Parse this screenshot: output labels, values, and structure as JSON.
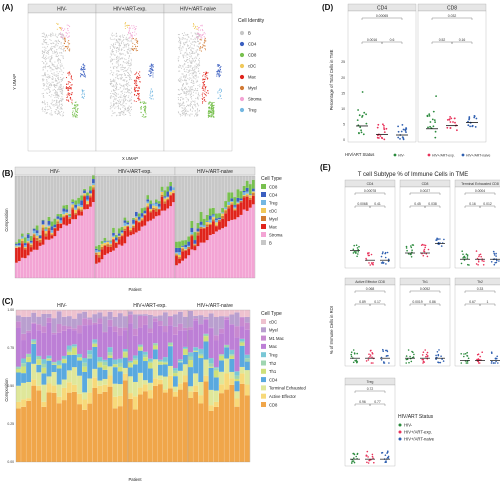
{
  "palette": {
    "B": "#c7c7c7",
    "CD4": "#3b5fc0",
    "CD8": "#78c04f",
    "cDC": "#f0c85a",
    "Mac": "#e0231b",
    "Myel": "#d17a34",
    "Stroma": "#f3a4d4",
    "Treg": "#74b7e1",
    "hiv_neg": "#2a8a3c",
    "hiv_exp": "#e8325a",
    "hiv_naive": "#2f5fb0",
    "C_cDC": "#eec2cf",
    "C_Myel": "#b99fcf",
    "C_M1": "#c88ad0",
    "C_Mac": "#bd7fd6",
    "C_Treg": "#79c7d6",
    "C_Th2": "#9fd5b0",
    "C_Th1": "#cfe07a",
    "C_CD4": "#5aa9df",
    "C_TermEx": "#dfe79a",
    "C_ActEff": "#f7d97a",
    "C_CD8": "#f0a64a"
  },
  "panelA": {
    "letter": "(A)",
    "facets": [
      "HIV-",
      "HIV+/ART-exp.",
      "HIV+/ART-naive"
    ],
    "xlabel": "X UMAP",
    "ylabel": "Y UMAP",
    "legend_title": "Cell Identity",
    "legend": [
      "B",
      "CD4",
      "CD8",
      "cDC",
      "Mac",
      "Myel",
      "Stroma",
      "Treg"
    ]
  },
  "panelB": {
    "letter": "(B)",
    "facets": [
      "HIV-",
      "HIV+/ART-exp.",
      "HIV+/ART-naive"
    ],
    "xlabel": "Patient",
    "ylabel": "Composition",
    "legend_title": "Cell Type",
    "legend": [
      "CD8",
      "CD4",
      "Treg",
      "cDC",
      "Myel",
      "Mac",
      "Stroma",
      "B"
    ]
  },
  "panelC": {
    "letter": "(C)",
    "facets": [
      "HIV-",
      "HIV+/ART-exp.",
      "HIV+/ART-naive"
    ],
    "xlabel": "Patient",
    "ylabel": "Composition",
    "legend_title": "Cell Type",
    "legend": [
      "cDC",
      "Myel",
      "M1 Mac",
      "Mac",
      "Treg",
      "Th2",
      "Th1",
      "CD4",
      "Terminal Exhausted",
      "Active Effector",
      "CD8"
    ]
  },
  "panelD": {
    "letter": "(D)",
    "ylabel": "Percentage of Total Cells in TME",
    "status_label": "HIV/ART Status",
    "status_items": [
      "HIV-",
      "HIV+/ART-exp.",
      "HIV+/ART-naive"
    ],
    "facets": [
      {
        "title": "CD4",
        "pvals": [
          "0.00065",
          "0.0016",
          "0.6"
        ]
      },
      {
        "title": "CD8",
        "pvals": [
          "0.032",
          "0.52",
          "0.16"
        ]
      }
    ],
    "yticks": [
      "0",
      "5",
      "10",
      "15",
      "20",
      "25"
    ]
  },
  "panelE": {
    "letter": "(E)",
    "title": "T cell Subtype % of Immune Cells in TME",
    "ylabel": "% of Immune Cells in ROI",
    "legend_title": "HIV/ART Status",
    "legend": [
      "HIV-",
      "HIV+/ART-exp.",
      "HIV+/ART-naive"
    ],
    "facets": [
      {
        "title": "CD4",
        "pvals": [
          "0.00078",
          "0.0068",
          "0.41"
        ]
      },
      {
        "title": "CD8",
        "pvals": [
          "0.0027",
          "0.45",
          "0.038"
        ]
      },
      {
        "title": "Terminal Exhausted CD8",
        "pvals": [
          "0.0004",
          "0.16",
          "0.012"
        ]
      },
      {
        "title": "Active Effector CD8",
        "pvals": [
          "0.068",
          "0.89",
          "0.17"
        ]
      },
      {
        "title": "Th1",
        "pvals": [
          "0.0052",
          "0.0019",
          "0.86"
        ]
      },
      {
        "title": "Th2",
        "pvals": [
          "0.33",
          "0.67",
          "1"
        ]
      },
      {
        "title": "Treg",
        "pvals": [
          "0.72",
          "0.96",
          "0.77"
        ]
      }
    ]
  },
  "chart_data": [
    {
      "type": "scatter",
      "panel": "A",
      "title": "",
      "xlabel": "X UMAP",
      "ylabel": "Y UMAP",
      "series": [
        {
          "name": "B"
        },
        {
          "name": "CD4"
        },
        {
          "name": "CD8"
        },
        {
          "name": "cDC"
        },
        {
          "name": "Mac"
        },
        {
          "name": "Myel"
        },
        {
          "name": "Stroma"
        },
        {
          "name": "Treg"
        }
      ]
    },
    {
      "type": "bar",
      "panel": "B",
      "xlabel": "Patient",
      "ylabel": "Composition",
      "ylim": [
        0,
        1
      ],
      "series": [
        {
          "name": "CD8"
        },
        {
          "name": "CD4"
        },
        {
          "name": "Treg"
        },
        {
          "name": "cDC"
        },
        {
          "name": "Myel"
        },
        {
          "name": "Mac"
        },
        {
          "name": "Stroma"
        },
        {
          "name": "B"
        }
      ]
    },
    {
      "type": "bar",
      "panel": "C",
      "xlabel": "Patient",
      "ylabel": "Composition",
      "ylim": [
        0,
        1
      ],
      "yticks": [
        "0.00",
        "0.25",
        "0.50",
        "0.75",
        "1.00"
      ],
      "series": [
        {
          "name": "cDC"
        },
        {
          "name": "Myel"
        },
        {
          "name": "M1 Mac"
        },
        {
          "name": "Mac"
        },
        {
          "name": "Treg"
        },
        {
          "name": "Th2"
        },
        {
          "name": "Th1"
        },
        {
          "name": "CD4"
        },
        {
          "name": "Terminal Exhausted"
        },
        {
          "name": "Active Effector"
        },
        {
          "name": "CD8"
        }
      ]
    },
    {
      "type": "scatter",
      "panel": "D",
      "ylabel": "Percentage of Total Cells in TME",
      "ylim": [
        0,
        25
      ],
      "facets": [
        "CD4",
        "CD8"
      ],
      "groups": [
        "HIV-",
        "HIV+/ART-exp.",
        "HIV+/ART-naive"
      ],
      "medians": {
        "CD4": [
          4.5,
          1.8,
          1.6
        ],
        "CD8": [
          3.6,
          4.6,
          5.6
        ]
      }
    },
    {
      "type": "scatter",
      "panel": "E",
      "ylabel": "% of Immune Cells in ROI",
      "groups": [
        "HIV-",
        "HIV+/ART-exp.",
        "HIV+/ART-naive"
      ],
      "facets": [
        "CD4",
        "CD8",
        "Terminal Exhausted CD8",
        "Active Effector CD8",
        "Th1",
        "Th2",
        "Treg"
      ]
    }
  ]
}
